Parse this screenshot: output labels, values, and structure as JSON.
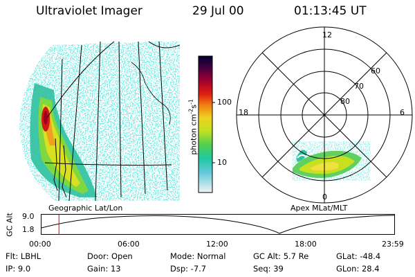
{
  "header": {
    "instrument": "Ultraviolet Imager",
    "date": "29 Jul 00",
    "time": "01:13:45 UT"
  },
  "colorbar": {
    "unit_label": "photon cm",
    "unit_exp1": "-2",
    "unit_s": "s",
    "unit_exp2": "-1",
    "tick_100": "100",
    "tick_10": "10",
    "colors": [
      "#000030",
      "#300040",
      "#800030",
      "#c00020",
      "#e83010",
      "#f08010",
      "#f0c020",
      "#e8e820",
      "#a8e020",
      "#50d050",
      "#20c890",
      "#20b8c8",
      "#a8e0e8",
      "#e0f4f4"
    ]
  },
  "geo_panel": {
    "caption": "Geographic Lat/Lon"
  },
  "polar_panel": {
    "caption": "Apex MLat/MLT",
    "mlt_12": "12",
    "mlt_18": "18",
    "mlt_6": "6",
    "mlt_0": "0",
    "lat_60": "60",
    "lat_70": "70",
    "lat_80": "80"
  },
  "orbit_plot": {
    "ylabel": "GC Alt",
    "ytick_top": "9.0",
    "ytick_bottom": "1.8",
    "xticks": [
      "00:00",
      "06:00",
      "12:00",
      "18:00",
      "23:59"
    ],
    "marker_time_hours": 1.23
  },
  "info": {
    "flt": "Flt: LBHL",
    "ip": "IP:  9.0",
    "door": "Door: Open",
    "gain": "Gain: 13",
    "mode": "Mode: Normal",
    "dsp": "Dsp:   -7.7",
    "gcalt": "GC Alt: 5.7 Re",
    "seq": "Seq: 39",
    "glat": "GLat: -48.4",
    "glon": "GLon: 28.4"
  }
}
